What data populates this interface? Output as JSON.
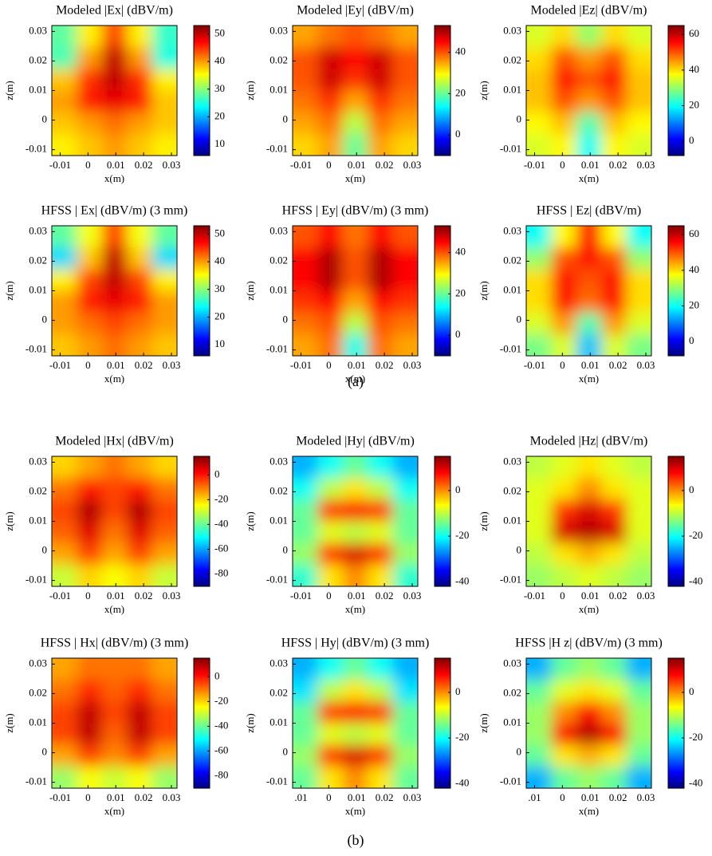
{
  "captions": [
    "(a)",
    "(b)"
  ],
  "chart_data": [
    {
      "type": "heatmap",
      "title": "Modeled |Ex| (dBV/m)",
      "xlabel": "x(m)",
      "ylabel": "z(m)",
      "colormap": "jet",
      "xlim": [
        -0.013,
        0.032
      ],
      "xticks": [
        -0.01,
        0,
        0.01,
        0.02,
        0.03
      ],
      "ylim": [
        -0.012,
        0.032
      ],
      "yticks": [
        -0.01,
        0,
        0.01,
        0.02,
        0.03
      ],
      "clim": [
        6,
        53
      ],
      "cticks": [
        10,
        20,
        30,
        40,
        50
      ],
      "z": [
        [
          28,
          36,
          44,
          36,
          26
        ],
        [
          27,
          40,
          50,
          40,
          25
        ],
        [
          38,
          45,
          50,
          45,
          36
        ],
        [
          40,
          46,
          48,
          46,
          38
        ],
        [
          38,
          40,
          42,
          40,
          38
        ],
        [
          36,
          38,
          40,
          38,
          36
        ]
      ]
    },
    {
      "type": "heatmap",
      "title": "Modeled |Ey| (dBV/m)",
      "xlabel": "x(m)",
      "ylabel": "z(m)",
      "colormap": "jet",
      "xlim": [
        -0.013,
        0.032
      ],
      "xticks": [
        -0.01,
        0,
        0.01,
        0.02,
        0.03
      ],
      "ylim": [
        -0.012,
        0.032
      ],
      "yticks": [
        -0.01,
        0,
        0.01,
        0.02,
        0.03
      ],
      "clim": [
        -10,
        53
      ],
      "cticks": [
        0,
        20,
        40
      ],
      "z": [
        [
          35,
          38,
          40,
          38,
          35
        ],
        [
          40,
          48,
          45,
          48,
          40
        ],
        [
          40,
          48,
          42,
          48,
          40
        ],
        [
          38,
          42,
          35,
          42,
          38
        ],
        [
          35,
          38,
          25,
          38,
          35
        ],
        [
          32,
          35,
          20,
          35,
          32
        ]
      ]
    },
    {
      "type": "heatmap",
      "title": "Modeled |Ez| (dBV/m)",
      "xlabel": "x(m)",
      "ylabel": "z(m)",
      "colormap": "jet",
      "xlim": [
        -0.013,
        0.032
      ],
      "xticks": [
        -0.01,
        0,
        0.01,
        0.02,
        0.03
      ],
      "ylim": [
        -0.012,
        0.032
      ],
      "yticks": [
        -0.01,
        0,
        0.01,
        0.02,
        0.03
      ],
      "clim": [
        -8,
        65
      ],
      "cticks": [
        0,
        20,
        40,
        60
      ],
      "z": [
        [
          35,
          40,
          30,
          40,
          35
        ],
        [
          40,
          50,
          45,
          50,
          40
        ],
        [
          42,
          55,
          50,
          55,
          42
        ],
        [
          42,
          50,
          45,
          50,
          42
        ],
        [
          38,
          42,
          25,
          42,
          38
        ],
        [
          35,
          38,
          20,
          38,
          35
        ]
      ]
    },
    {
      "type": "heatmap",
      "title": "HFSS | Ex| (dBV/m) (3 mm)",
      "xlabel": "x(m)",
      "ylabel": "z(m)",
      "colormap": "jet",
      "xlim": [
        -0.013,
        0.032
      ],
      "xticks": [
        -0.01,
        0,
        0.01,
        0.02,
        0.03
      ],
      "ylim": [
        -0.012,
        0.032
      ],
      "yticks": [
        -0.01,
        0,
        0.01,
        0.02,
        0.03
      ],
      "clim": [
        6,
        53
      ],
      "cticks": [
        10,
        20,
        30,
        40,
        50
      ],
      "z": [
        [
          28,
          35,
          44,
          35,
          28
        ],
        [
          22,
          38,
          50,
          38,
          22
        ],
        [
          36,
          44,
          50,
          44,
          36
        ],
        [
          40,
          46,
          48,
          46,
          40
        ],
        [
          40,
          42,
          44,
          42,
          40
        ],
        [
          38,
          40,
          42,
          40,
          38
        ]
      ]
    },
    {
      "type": "heatmap",
      "title": "HFSS | Ey| (dBV/m) (3 mm)",
      "xlabel": "x(m)",
      "ylabel": "z(m)",
      "colormap": "jet",
      "xlim": [
        -0.013,
        0.032
      ],
      "xticks": [
        -0.01,
        0,
        0.01,
        0.02,
        0.03
      ],
      "ylim": [
        -0.012,
        0.032
      ],
      "yticks": [
        -0.01,
        0,
        0.01,
        0.02,
        0.03
      ],
      "clim": [
        -10,
        53
      ],
      "cticks": [
        0,
        20,
        40
      ],
      "z": [
        [
          40,
          45,
          38,
          45,
          40
        ],
        [
          45,
          50,
          40,
          50,
          45
        ],
        [
          45,
          50,
          40,
          50,
          45
        ],
        [
          42,
          45,
          35,
          45,
          42
        ],
        [
          38,
          40,
          25,
          40,
          38
        ],
        [
          35,
          38,
          15,
          38,
          35
        ]
      ]
    },
    {
      "type": "heatmap",
      "title": "HFSS | Ez| (dBV/m)",
      "xlabel": "x(m)",
      "ylabel": "z(m)",
      "colormap": "jet",
      "xlim": [
        -0.013,
        0.032
      ],
      "xticks": [
        -0.01,
        0,
        0.01,
        0.02,
        0.03
      ],
      "ylim": [
        -0.012,
        0.032
      ],
      "yticks": [
        -0.01,
        0,
        0.01,
        0.02,
        0.03
      ],
      "clim": [
        -8,
        65
      ],
      "cticks": [
        0,
        20,
        40,
        60
      ],
      "z": [
        [
          20,
          38,
          55,
          38,
          20
        ],
        [
          30,
          50,
          55,
          50,
          30
        ],
        [
          40,
          55,
          50,
          55,
          40
        ],
        [
          40,
          55,
          48,
          55,
          40
        ],
        [
          35,
          45,
          25,
          45,
          35
        ],
        [
          28,
          35,
          15,
          35,
          28
        ]
      ]
    },
    {
      "type": "heatmap",
      "title": "Modeled |Hx| (dBV/m)",
      "xlabel": "x(m)",
      "ylabel": "z(m)",
      "colormap": "jet",
      "xlim": [
        -0.013,
        0.032
      ],
      "xticks": [
        -0.01,
        0,
        0.01,
        0.02,
        0.03
      ],
      "ylim": [
        -0.012,
        0.032
      ],
      "yticks": [
        -0.01,
        0,
        0.01,
        0.02,
        0.03
      ],
      "clim": [
        -90,
        15
      ],
      "cticks": [
        -80,
        -60,
        -40,
        -20,
        0
      ],
      "z": [
        [
          -20,
          -15,
          -10,
          -15,
          -20
        ],
        [
          -10,
          0,
          -5,
          0,
          -10
        ],
        [
          -5,
          10,
          -5,
          10,
          -5
        ],
        [
          -8,
          5,
          -10,
          5,
          -8
        ],
        [
          -15,
          -5,
          -15,
          -5,
          -15
        ],
        [
          -30,
          -20,
          -25,
          -20,
          -30
        ]
      ]
    },
    {
      "type": "heatmap",
      "title": "Modeled |Hy| (dBV/m)",
      "xlabel": "x(m)",
      "ylabel": "z(m)",
      "colormap": "jet",
      "xlim": [
        -0.013,
        0.032
      ],
      "xticks": [
        -0.01,
        0,
        0.01,
        0.02,
        0.03
      ],
      "ylim": [
        -0.012,
        0.032
      ],
      "yticks": [
        -0.01,
        0,
        0.01,
        0.02,
        0.03
      ],
      "clim": [
        -42,
        15
      ],
      "cticks": [
        -40,
        -20,
        0
      ],
      "z": [
        [
          -25,
          -20,
          -15,
          -20,
          -25
        ],
        [
          -20,
          -10,
          -5,
          -10,
          -20
        ],
        [
          -15,
          5,
          8,
          5,
          -15
        ],
        [
          -15,
          -8,
          -10,
          -8,
          -15
        ],
        [
          -12,
          5,
          10,
          5,
          -12
        ],
        [
          -18,
          -5,
          0,
          -5,
          -18
        ]
      ]
    },
    {
      "type": "heatmap",
      "title": "Modeled |Hz| (dBV/m)",
      "xlabel": "x(m)",
      "ylabel": "z(m)",
      "colormap": "jet",
      "xlim": [
        -0.013,
        0.032
      ],
      "xticks": [
        -0.01,
        0,
        0.01,
        0.02,
        0.03
      ],
      "ylim": [
        -0.012,
        0.032
      ],
      "yticks": [
        -0.01,
        0,
        0.01,
        0.02,
        0.03
      ],
      "clim": [
        -42,
        15
      ],
      "cticks": [
        -40,
        -20,
        0
      ],
      "z": [
        [
          -10,
          -8,
          -5,
          -8,
          -10
        ],
        [
          -8,
          -5,
          0,
          -5,
          -8
        ],
        [
          -8,
          5,
          10,
          5,
          -8
        ],
        [
          -8,
          10,
          12,
          10,
          -8
        ],
        [
          -10,
          -5,
          -2,
          -5,
          -10
        ],
        [
          -12,
          -10,
          -8,
          -10,
          -12
        ]
      ]
    },
    {
      "type": "heatmap",
      "title": "HFSS | Hx| (dBV/m) (3 mm)",
      "xlabel": "x(m)",
      "ylabel": "z(m)",
      "colormap": "jet",
      "xlim": [
        -0.013,
        0.032
      ],
      "xticks": [
        -0.01,
        0,
        0.01,
        0.02,
        0.03
      ],
      "ylim": [
        -0.012,
        0.032
      ],
      "yticks": [
        -0.01,
        0,
        0.01,
        0.02,
        0.03
      ],
      "clim": [
        -90,
        15
      ],
      "cticks": [
        -80,
        -60,
        -40,
        -20,
        0
      ],
      "z": [
        [
          -15,
          -10,
          -10,
          -10,
          -15
        ],
        [
          -10,
          -2,
          -8,
          -2,
          -10
        ],
        [
          -5,
          8,
          -5,
          8,
          -5
        ],
        [
          -5,
          8,
          -8,
          8,
          -5
        ],
        [
          -15,
          -5,
          -12,
          -5,
          -15
        ],
        [
          -35,
          -25,
          -30,
          -25,
          -35
        ]
      ]
    },
    {
      "type": "heatmap",
      "title": "HFSS | Hy| (dBV/m) (3 mm)",
      "xlabel": "x(m)",
      "ylabel": "z(m)",
      "colormap": "jet",
      "xlim": [
        -0.013,
        0.032
      ],
      "xticks": [
        {
          "value": -0.01,
          "label": ".01"
        },
        0,
        0.01,
        0.02,
        0.03
      ],
      "ylim": [
        -0.012,
        0.032
      ],
      "yticks": [
        -0.01,
        0,
        0.01,
        0.02,
        0.03
      ],
      "clim": [
        -42,
        15
      ],
      "cticks": [
        -40,
        -20,
        0
      ],
      "z": [
        [
          -25,
          -20,
          -15,
          -20,
          -25
        ],
        [
          -22,
          -10,
          -5,
          -10,
          -22
        ],
        [
          -15,
          5,
          8,
          5,
          -15
        ],
        [
          -15,
          -8,
          -10,
          -8,
          -15
        ],
        [
          -12,
          5,
          10,
          5,
          -12
        ],
        [
          -15,
          -5,
          0,
          -5,
          -15
        ]
      ]
    },
    {
      "type": "heatmap",
      "title": "HFSS |H z| (dBV/m) (3 mm)",
      "xlabel": "x(m)",
      "ylabel": "z(m)",
      "colormap": "jet",
      "xlim": [
        -0.013,
        0.032
      ],
      "xticks": [
        {
          "value": -0.01,
          "label": ".01"
        },
        0,
        0.01,
        0.02,
        0.03
      ],
      "ylim": [
        -0.012,
        0.032
      ],
      "yticks": [
        -0.01,
        0,
        0.01,
        0.02,
        0.03
      ],
      "clim": [
        -42,
        15
      ],
      "cticks": [
        -40,
        -20,
        0
      ],
      "z": [
        [
          -25,
          -15,
          -12,
          -15,
          -25
        ],
        [
          -15,
          -8,
          -5,
          -8,
          -15
        ],
        [
          -12,
          0,
          8,
          0,
          -12
        ],
        [
          -12,
          8,
          12,
          8,
          -12
        ],
        [
          -15,
          -5,
          -2,
          -5,
          -15
        ],
        [
          -25,
          -15,
          -12,
          -15,
          -25
        ]
      ]
    }
  ]
}
